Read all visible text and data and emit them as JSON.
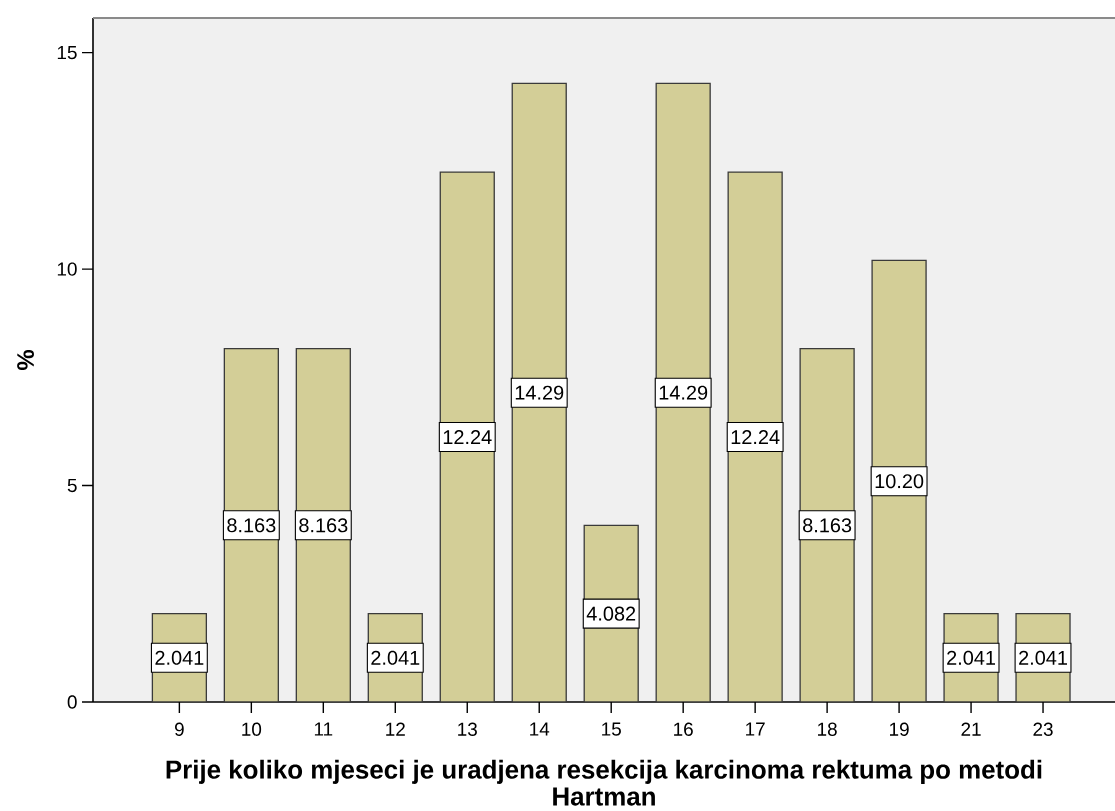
{
  "chart_data": {
    "type": "bar",
    "xlabel": "Prije koliko mjeseci je uradjena resekcija karcinoma rektuma po metodi Hartman",
    "ylabel": "%",
    "categories": [
      "9",
      "10",
      "11",
      "12",
      "13",
      "14",
      "15",
      "16",
      "17",
      "18",
      "19",
      "21",
      "23"
    ],
    "values": [
      2.041,
      8.163,
      8.163,
      2.041,
      12.24,
      14.29,
      4.082,
      14.29,
      12.24,
      8.163,
      10.2,
      2.041,
      2.041
    ],
    "value_labels": [
      "2.041",
      "8.163",
      "8.163",
      "2.041",
      "12.24",
      "14.29",
      "4.082",
      "14.29",
      "12.24",
      "8.163",
      "10.20",
      "2.041",
      "2.041"
    ],
    "color": "#d3ce97",
    "ylim": [
      0,
      15.8
    ],
    "yticks": [
      0,
      5,
      10,
      15
    ]
  }
}
